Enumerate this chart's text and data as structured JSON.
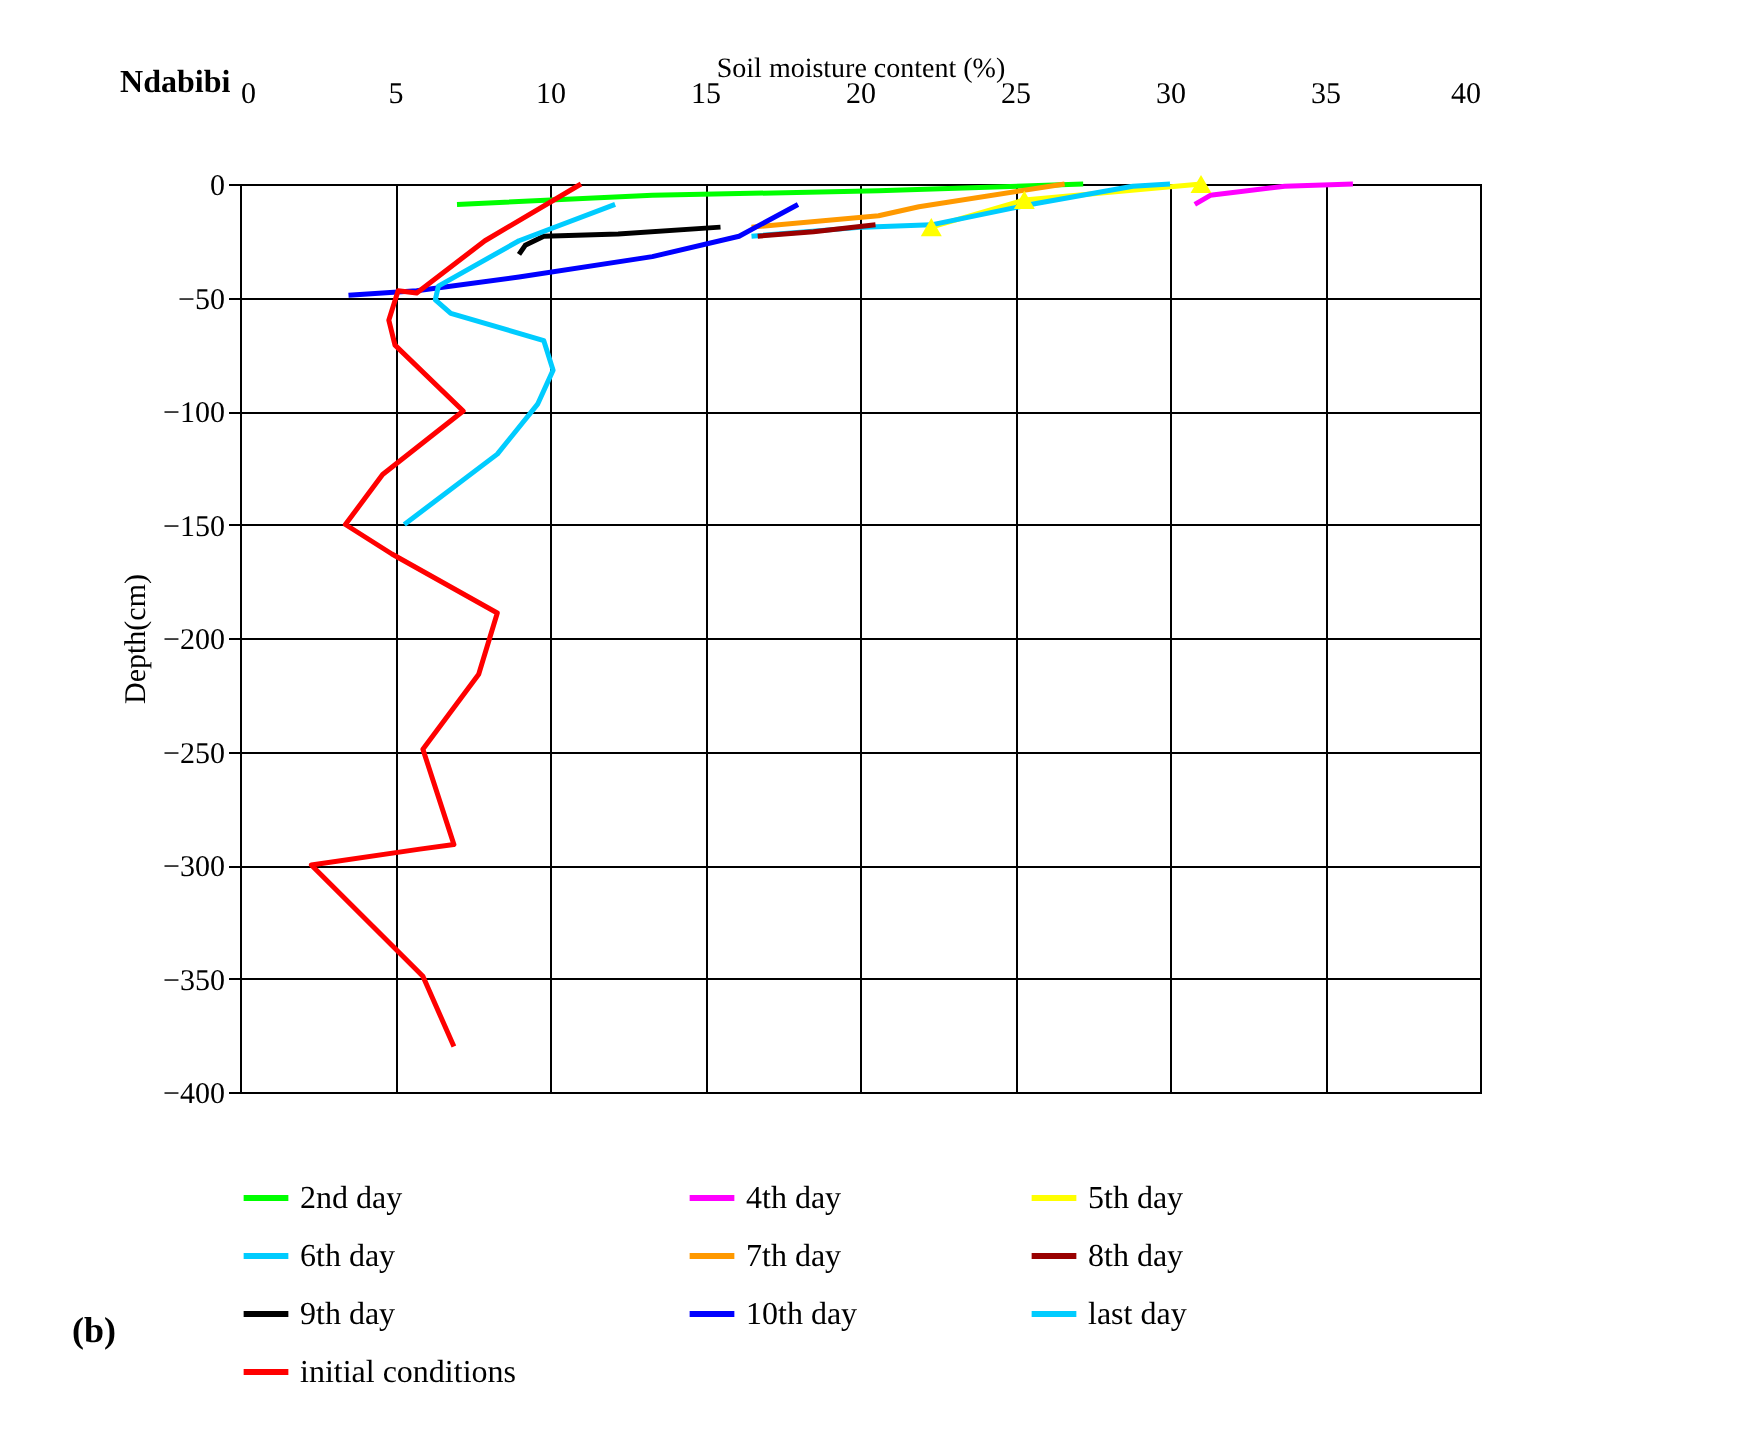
{
  "chart_data": {
    "type": "line",
    "title": "Ndabibi",
    "xlabel": "Soil moisture content (%)",
    "ylabel": "Depth(cm)",
    "annotations": [
      "(b)"
    ],
    "xlim": [
      0,
      40
    ],
    "xticks": [
      0,
      5,
      10,
      15,
      20,
      25,
      30,
      35,
      40
    ],
    "ylim": [
      -400,
      0
    ],
    "yticks": [
      -400,
      -350,
      -300,
      -250,
      -200,
      -150,
      -100,
      -50,
      0
    ],
    "grid": true,
    "legend": "bottom",
    "line_style": "solid",
    "series": [
      {
        "name": "2nd day",
        "color": "#00ff00",
        "x": [
          7.0,
          13.3,
          20.6,
          27.2
        ],
        "values": [
          -9,
          -5,
          -3,
          0
        ]
      },
      {
        "name": "4th day",
        "color": "#ff00ff",
        "x": [
          30.8,
          31.3,
          33.7,
          35.9
        ],
        "values": [
          -9,
          -5,
          -1,
          0
        ]
      },
      {
        "name": "5th day",
        "color": "#ffff00",
        "marker": "triangle",
        "x": [
          22.3,
          25.3,
          31.0
        ],
        "values": [
          -19,
          -7,
          0
        ]
      },
      {
        "name": "6th day",
        "color": "#00ccff",
        "x": [
          16.5,
          20.1,
          22.3,
          25.5,
          28.8,
          30.0
        ],
        "values": [
          -23,
          -19,
          -18,
          -9,
          -1,
          0
        ]
      },
      {
        "name": "7th day",
        "color": "#ff9900",
        "x": [
          16.5,
          20.6,
          21.9,
          26.6
        ],
        "values": [
          -19,
          -14,
          -10,
          0
        ]
      },
      {
        "name": "8th day",
        "color": "#990000",
        "x": [
          16.7,
          18.5,
          20.5
        ],
        "values": [
          -23,
          -21,
          -18
        ]
      },
      {
        "name": "9th day",
        "color": "#000000",
        "x": [
          9.0,
          9.2,
          9.8,
          12.2,
          15.5
        ],
        "values": [
          -31,
          -27,
          -23,
          -22,
          -19
        ]
      },
      {
        "name": "10th day",
        "color": "#0000ff",
        "x": [
          3.5,
          5.7,
          9.0,
          13.3,
          16.1,
          18.0
        ],
        "values": [
          -49,
          -47,
          -41,
          -32,
          -23,
          -9
        ]
      },
      {
        "name": "last day",
        "color": "#00ccff",
        "x": [
          12.1,
          9.0,
          6.4,
          6.3,
          6.8,
          9.8,
          10.1,
          9.6,
          8.3,
          5.3
        ],
        "values": [
          -9,
          -25,
          -45,
          -51,
          -57,
          -69,
          -82,
          -97,
          -119,
          -150
        ]
      },
      {
        "name": "initial conditions",
        "color": "#ff0000",
        "x": [
          11.0,
          7.9,
          5.7,
          5.1,
          4.8,
          5.0,
          7.2,
          4.6,
          3.4,
          4.9,
          8.3,
          7.7,
          5.9,
          6.9,
          5.8,
          2.3,
          5.9,
          6.9
        ],
        "values": [
          0,
          -25,
          -48,
          -47,
          -60,
          -71,
          -100,
          -128,
          -150,
          -163,
          -189,
          -216,
          -249,
          -291,
          -293,
          -300,
          -349,
          -380
        ]
      }
    ]
  }
}
